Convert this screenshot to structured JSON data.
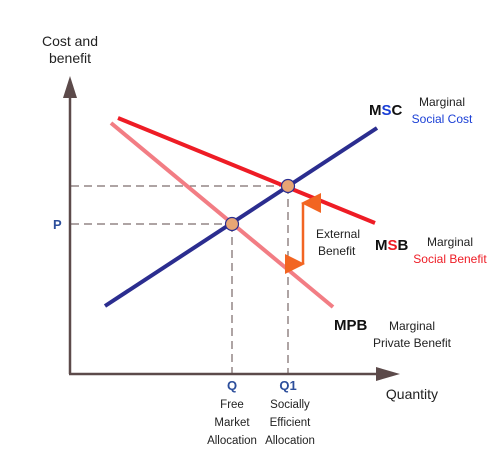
{
  "axis": {
    "y_label_line1": "Cost and",
    "y_label_line2": "benefit",
    "x_label": "Quantity"
  },
  "price_label": "P",
  "curves": {
    "msc": {
      "code_prefix": "M",
      "code_highlight": "S",
      "code_suffix": "C",
      "desc_line1": "Marginal",
      "desc_line2": "Social Cost",
      "color": "#2b2d8f",
      "highlight_color": "#1a3fd6"
    },
    "msb": {
      "code_prefix": "M",
      "code_highlight": "S",
      "code_suffix": "B",
      "desc_line1": "Marginal",
      "desc_line2": "Social Benefit",
      "color": "#ee1c25",
      "highlight_color": "#ee1c25"
    },
    "mpb": {
      "code": "MPB",
      "desc_line1": "Marginal",
      "desc_line2": "Private Benefit",
      "color": "#f27d84"
    }
  },
  "external_benefit": {
    "line1": "External",
    "line2": "Benefit",
    "arrow_color": "#f26522"
  },
  "q_marks": [
    {
      "label": "Q",
      "desc": [
        "Free",
        "Market",
        "Allocation"
      ]
    },
    {
      "label": "Q1",
      "desc": [
        "Socially",
        "Efficient",
        "Allocation"
      ]
    }
  ],
  "colors": {
    "axis": "#5c4a4a",
    "dashed": "#5c4a4a",
    "label_blue": "#2c4e9b",
    "dot_fill": "#e8a574"
  }
}
